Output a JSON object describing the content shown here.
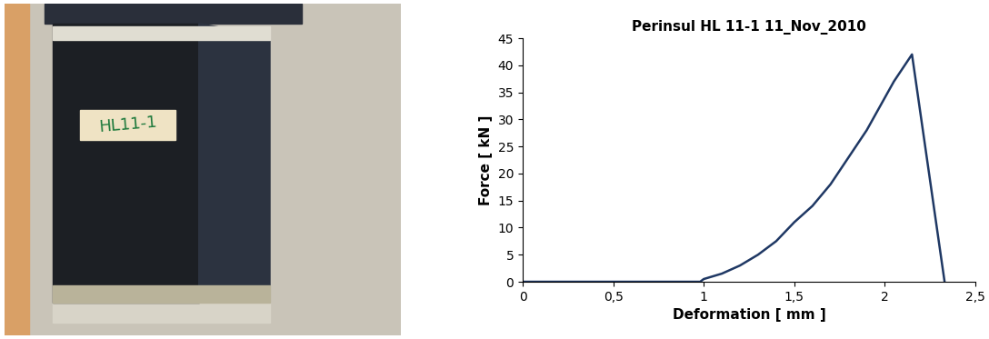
{
  "photo": {
    "label": "HL11-1"
  },
  "chart_data": {
    "type": "line",
    "title": "Perinsul HL 11-1 11_Nov_2010",
    "x_label": "Deformation [ mm ]",
    "y_label": "Force [ kN ]",
    "x": [
      0,
      0.5,
      0.98,
      1.0,
      1.1,
      1.2,
      1.3,
      1.4,
      1.5,
      1.6,
      1.7,
      1.8,
      1.9,
      2.0,
      2.05,
      2.1,
      2.15,
      2.33
    ],
    "series": [
      {
        "name": "Perinsul HL 11-1",
        "color": "#1f3864",
        "values": [
          0,
          0,
          0,
          0.5,
          1.5,
          3,
          5,
          7.5,
          11,
          14,
          18,
          23,
          28,
          34,
          37,
          39.5,
          42,
          0
        ]
      }
    ],
    "xlim": [
      0,
      2.5
    ],
    "xticks": [
      0,
      {
        "value": 0.5,
        "label": "0,5"
      },
      1,
      {
        "value": 1.5,
        "label": "1,5"
      },
      2,
      {
        "value": 2.5,
        "label": "2,5"
      }
    ],
    "ylim": [
      0,
      45
    ],
    "yticks": [
      0,
      5,
      10,
      15,
      20,
      25,
      30,
      35,
      40,
      45
    ],
    "grid": false
  }
}
